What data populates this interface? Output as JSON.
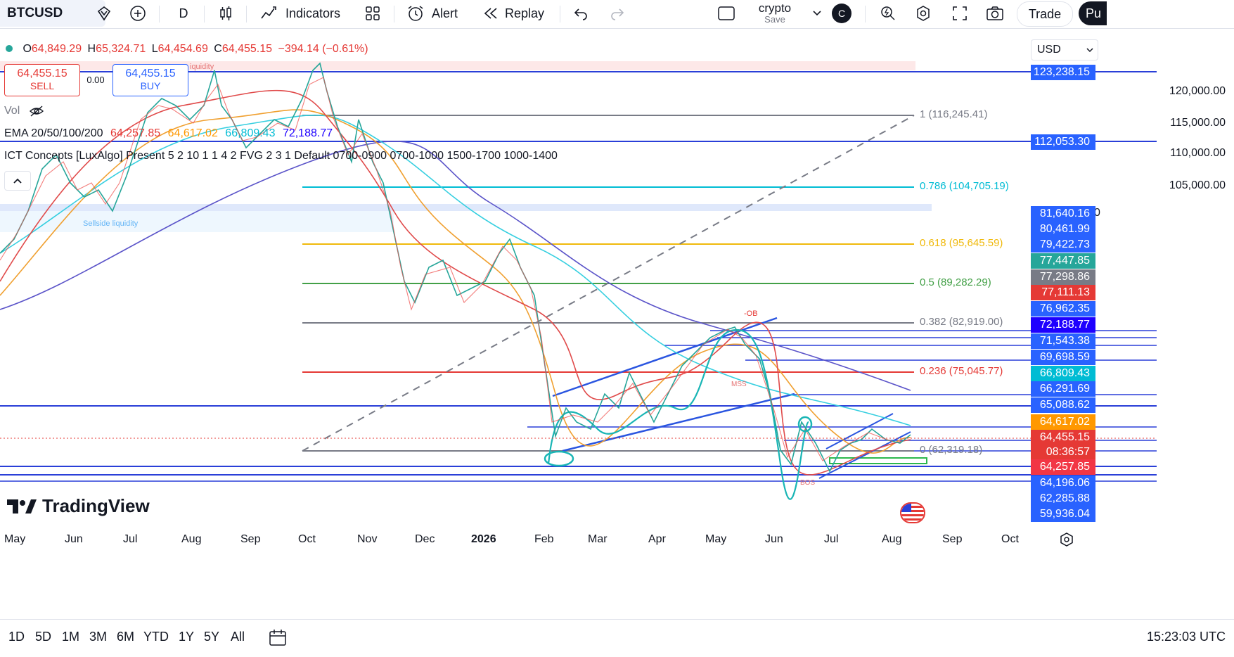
{
  "toolbar": {
    "symbol": "BTCUSD",
    "interval": "D",
    "indicators": "Indicators",
    "alert": "Alert",
    "replay": "Replay",
    "layout_name": "crypto",
    "layout_save": "Save",
    "avatar": "C",
    "trade": "Trade",
    "publish": "Pu"
  },
  "ohlc": {
    "o_label": "O",
    "o": "64,849.29",
    "h_label": "H",
    "h": "65,324.71",
    "l_label": "L",
    "l": "64,454.69",
    "c_label": "C",
    "c": "64,455.15",
    "change": "−394.14 (−0.61%)"
  },
  "trade_box": {
    "sell_price": "64,455.15",
    "sell_label": "SELL",
    "spread": "0.00",
    "buy_price": "64,455.15",
    "buy_label": "BUY"
  },
  "indicators": {
    "vol": "Vol",
    "ema_name": "EMA 20/50/100/200",
    "ema20": "64,257.85",
    "ema50": "64,617.02",
    "ema100": "66,809.43",
    "ema200": "72,188.77",
    "ict": "ICT Concepts [LuxAlgo] Present 5 2 10 1 1 4 2 FVG 2 3 1 Default 0700-0900 0700-1000 1500-1700 1000-1400"
  },
  "chart_labels": {
    "liquidity": "iquidity",
    "sellside": "Sellside liquidity",
    "ob": "-OB",
    "mss": "MSS",
    "bos": "BOS"
  },
  "fib": [
    {
      "text": "1 (116,245.41)",
      "color": "#787b86"
    },
    {
      "text": "0.786 (104,705.19)",
      "color": "#00bcd4"
    },
    {
      "text": "0.618 (95,645.59)",
      "color": "#f0b90b"
    },
    {
      "text": "0.5 (89,282.29)",
      "color": "#43a047"
    },
    {
      "text": "0.382 (82,919.00)",
      "color": "#787b86"
    },
    {
      "text": "0.236 (75,045.77)",
      "color": "#e53935"
    },
    {
      "text": "0 (62,319.18)",
      "color": "#787b86"
    }
  ],
  "currency": "USD",
  "price_ticks": [
    "120,000.00",
    "115,000.00",
    "110,000.00",
    "105,000.00"
  ],
  "price_labels": [
    {
      "text": "123,238.15",
      "bg": "#2962ff"
    },
    {
      "text": "112,053.30",
      "bg": "#2962ff"
    },
    {
      "text": "81,640.16",
      "bg": "#2962ff"
    },
    {
      "text": "80,461.99",
      "bg": "#2962ff"
    },
    {
      "text": "79,422.73",
      "bg": "#2962ff"
    },
    {
      "text": "77,447.85",
      "bg": "#26a69a"
    },
    {
      "text": "77,298.86",
      "bg": "#787b86"
    },
    {
      "text": "77,111.13",
      "bg": "#e53935"
    },
    {
      "text": "76,962.35",
      "bg": "#2962ff"
    },
    {
      "text": "72,188.77",
      "bg": "#1e00ff"
    },
    {
      "text": "71,543.38",
      "bg": "#2962ff"
    },
    {
      "text": "69,698.59",
      "bg": "#2962ff"
    },
    {
      "text": "66,809.43",
      "bg": "#00bcd4"
    },
    {
      "text": "66,291.69",
      "bg": "#2962ff"
    },
    {
      "text": "65,088.62",
      "bg": "#2962ff"
    },
    {
      "text": "64,617.02",
      "bg": "#ff9800"
    },
    {
      "text": "64,455.15",
      "bg": "#e53935"
    },
    {
      "text": "08:36:57",
      "bg": "#e53935"
    },
    {
      "text": "64,257.85",
      "bg": "#f23645"
    },
    {
      "text": "64,196.06",
      "bg": "#2962ff"
    },
    {
      "text": "62,285.88",
      "bg": "#2962ff"
    },
    {
      "text": "59,936.04",
      "bg": "#2962ff"
    }
  ],
  "time_axis": [
    "May",
    "Jun",
    "Jul",
    "Aug",
    "Sep",
    "Oct",
    "Nov",
    "Dec",
    "2026",
    "Feb",
    "Mar",
    "Apr",
    "May",
    "Jun",
    "Jul",
    "Aug",
    "Sep",
    "Oct"
  ],
  "ranges": [
    "1D",
    "5D",
    "1M",
    "3M",
    "6M",
    "YTD",
    "1Y",
    "5Y",
    "All"
  ],
  "clock": "15:23:03 UTC",
  "logo": "TradingView"
}
